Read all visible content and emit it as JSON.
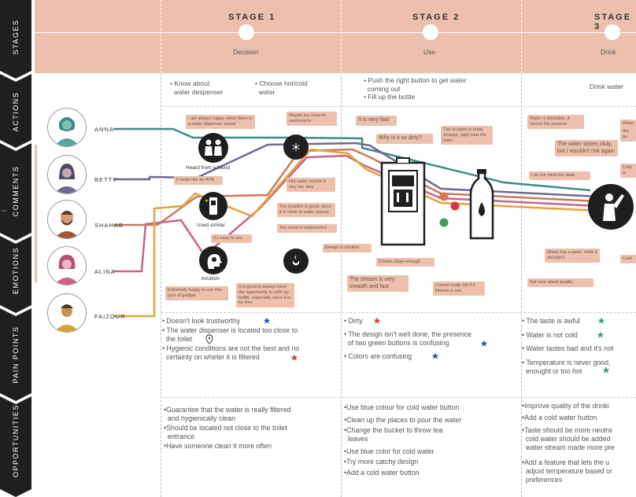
{
  "side_rows": [
    "STAGES",
    "ACTIONS",
    "COMMENTS",
    "EMOTIONS",
    "PAIN POINTS",
    "OPPORTUNITIES"
  ],
  "stages": [
    {
      "title": "STAGE 1",
      "sub": "Decision"
    },
    {
      "title": "STAGE 2",
      "sub": "Use"
    },
    {
      "title": "STAGE 3",
      "sub": "Drink"
    }
  ],
  "actions": {
    "s1a": "• Know about\n  water despenser",
    "s1b": "• Choose hot/cold\n  water",
    "s2": "• Push the right button to get water\n  coming out\n• Fill up the bottle",
    "s3": "Drink water"
  },
  "personas": [
    "ANNA",
    "BETTY",
    "SHAHAB",
    "ALINA",
    "FAIZOUR"
  ],
  "icon_labels": {
    "friend": "Heard from a friend",
    "similar": "Used similar",
    "intuition": "Intuition"
  },
  "bubbles": {
    "b1": "I am always happy when there is a water dispenser aroud",
    "b2": "Maybe too close to washrooms",
    "b3": "It looks like an ATM",
    "b4": "Hot water nozzle is way too dirty",
    "b5": "The location is good, since it is close to water source",
    "b6": "Too close to washrooms",
    "b7": "It's easy to use",
    "b8": "Extremely happy to use this type of gadget",
    "b9": "It is good to always have the opportunity to refill my bottle, especially since it is for free",
    "b10": "Design is intuitive",
    "b11": "It is very fast",
    "b12": "Why is it so dirty?",
    "b13": "The location is really strange, right near the toilet",
    "b14": "It looks clean enough",
    "b15": "The stream is very smooth and fast",
    "b16": "Cannot really tell if it filtered or not",
    "b17": "Water is drinkable, it serves the purpose",
    "b18": "The water tastes okay, but I wouldn't risk again",
    "b19": "I do not mind the taste",
    "b20": "Water has a taste, while it shouldn't",
    "b21": "Not sure about quality",
    "b22": "Water",
    "b23": "Cold w",
    "b24": "Cold",
    "b25": "the pu"
  },
  "pain_points": {
    "s1": [
      "• Doesn't look trustworthy",
      "• The water dispenser is located too close to\n  the toilet",
      "• Hygienic conditions are not the best and no\n  certainty on wheter it is filtered"
    ],
    "s2": [
      "• Dirty",
      "• The design isn't well done, the presence\n  of two green buttons is confusing",
      "• Colors are confusing"
    ],
    "s3": [
      "• The taste is awful",
      "• Water is not cold",
      "• Water tastes bad and it's not",
      "• Temperature is never good,\n  enought or too hot"
    ]
  },
  "opportunities": {
    "s1": [
      "•Guarantee that the water is really filtered\n  and hygienically clean",
      "•Should be located not close to the toilet\n  entrance",
      "•Have someone clean it more often"
    ],
    "s2": [
      "•Use blue colour for cold water button",
      "•Clean up the places to pour the water",
      "•Change the bucket to throw tea\n  leaves",
      "•Use blue color for cold water",
      "•Try more catchy design",
      "•Add a cold water button"
    ],
    "s3": [
      "•Improve quality of the drinki",
      "•Add a cold water button",
      "•Taste should be more neutra\n  cold water should be added\n  water stream made more pre",
      "•Add a feature that lets the u\n  adjust temperature based or\n  preferences"
    ]
  },
  "colors": {
    "stagebar": "#ecc0ad",
    "sidebar": "#1f1f1f",
    "teal": "#3f8a84",
    "purple": "#6e6a8c",
    "brown": "#c77a5e",
    "pink": "#c86488",
    "orange": "#e6a13a",
    "star_blue": "#2b57a4",
    "star_red": "#d33b3b",
    "star_teal": "#3c9a8e"
  }
}
